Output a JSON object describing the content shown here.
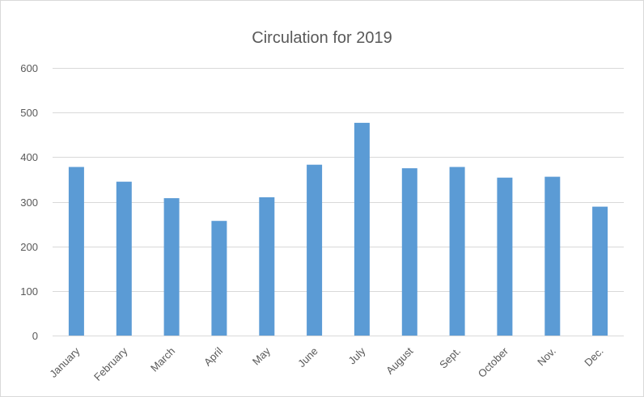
{
  "chart_data": {
    "type": "bar",
    "title": "Circulation for 2019",
    "xlabel": "",
    "ylabel": "",
    "categories": [
      "January",
      "February",
      "March",
      "April",
      "May",
      "June",
      "July",
      "August",
      "Sept.",
      "October",
      "Nov.",
      "Dec."
    ],
    "values": [
      378,
      345,
      308,
      257,
      310,
      383,
      477,
      375,
      378,
      354,
      356,
      289
    ],
    "ylim": [
      0,
      600
    ],
    "yticks": [
      0,
      100,
      200,
      300,
      400,
      500,
      600
    ],
    "grid": true,
    "legend": "none",
    "bar_color": "#5b9bd5"
  }
}
